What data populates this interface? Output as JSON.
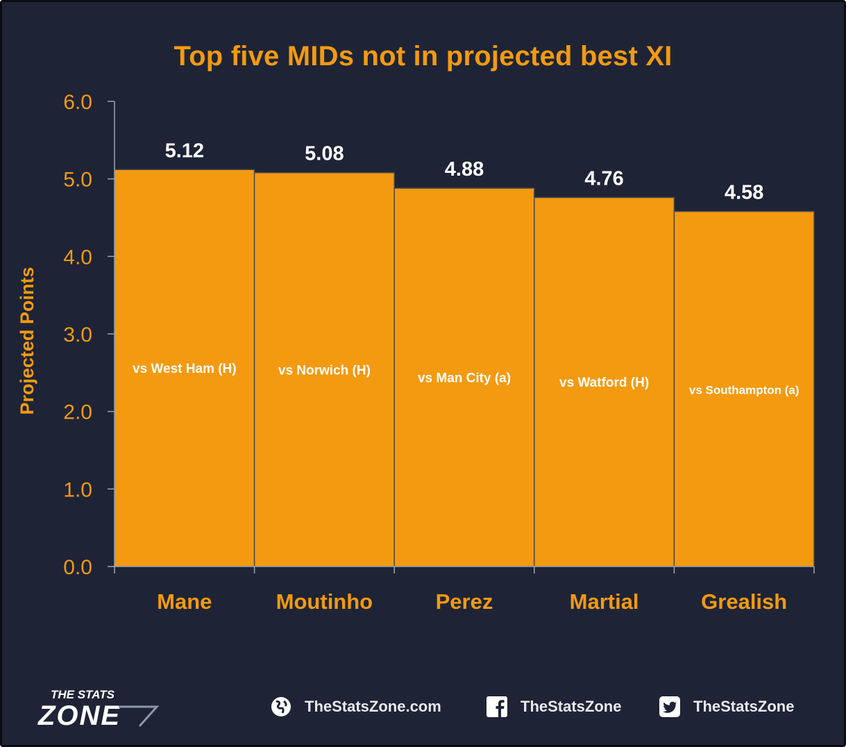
{
  "chart_data": {
    "type": "bar",
    "title": "Top five MIDs not in projected best XI",
    "xlabel": "",
    "ylabel": "Projected Points",
    "ylim": [
      0,
      6
    ],
    "yticks": [
      "0.0",
      "1.0",
      "2.0",
      "3.0",
      "4.0",
      "5.0",
      "6.0"
    ],
    "categories": [
      "Mane",
      "Moutinho",
      "Perez",
      "Martial",
      "Grealish"
    ],
    "values": [
      5.12,
      5.08,
      4.88,
      4.76,
      4.58
    ],
    "value_labels": [
      "5.12",
      "5.08",
      "4.88",
      "4.76",
      "4.58"
    ],
    "bar_labels": [
      "vs West Ham (H)",
      "vs Norwich (H)",
      "vs Man City (a)",
      "vs Watford (H)",
      "vs Southampton (a)"
    ],
    "grid": false,
    "colors": {
      "bar": "#f39a11",
      "background": "#1e2436",
      "axis_text": "#f39a11",
      "value_label": "#ffffff",
      "bar_label": "#ffffff"
    }
  },
  "footer": {
    "logo_line1": "THE STATS",
    "logo_line2": "ZONE",
    "website_icon": "globe-icon",
    "website": "TheStatsZone.com",
    "facebook_icon": "facebook-icon",
    "facebook": "TheStatsZone",
    "twitter_icon": "twitter-icon",
    "twitter": "TheStatsZone"
  }
}
